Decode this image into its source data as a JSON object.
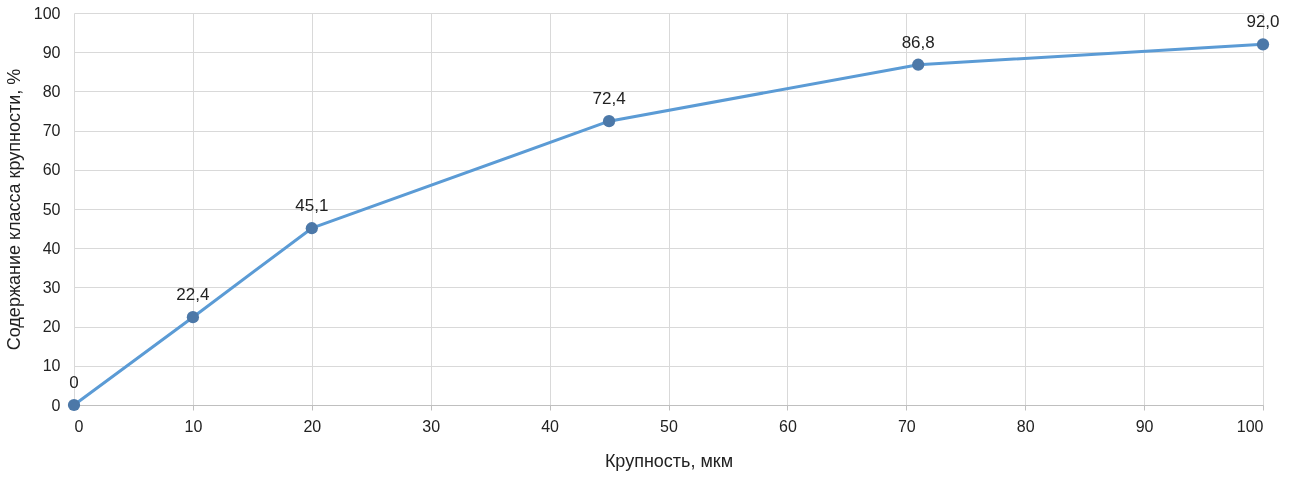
{
  "chart_data": {
    "type": "line",
    "xlabel": "Крупность, мкм",
    "ylabel": "Содержание класса крупности, %",
    "x": [
      0,
      10,
      20,
      45,
      71,
      100
    ],
    "series": [
      {
        "color": "#5b9bd5",
        "values": [
          0,
          22.4,
          45.1,
          72.4,
          86.8,
          92.0
        ],
        "value_labels": [
          "0",
          "22,4",
          "45,1",
          "72,4",
          "86,8",
          "92,0"
        ]
      }
    ],
    "xlim": [
      0,
      100
    ],
    "ylim": [
      0,
      100
    ],
    "xticks": [
      0,
      10,
      20,
      30,
      40,
      50,
      60,
      70,
      80,
      90,
      100
    ],
    "yticks": [
      0,
      10,
      20,
      30,
      40,
      50,
      60,
      70,
      80,
      90,
      100
    ],
    "grid": true,
    "marker": "circle",
    "line_style": "solid"
  }
}
